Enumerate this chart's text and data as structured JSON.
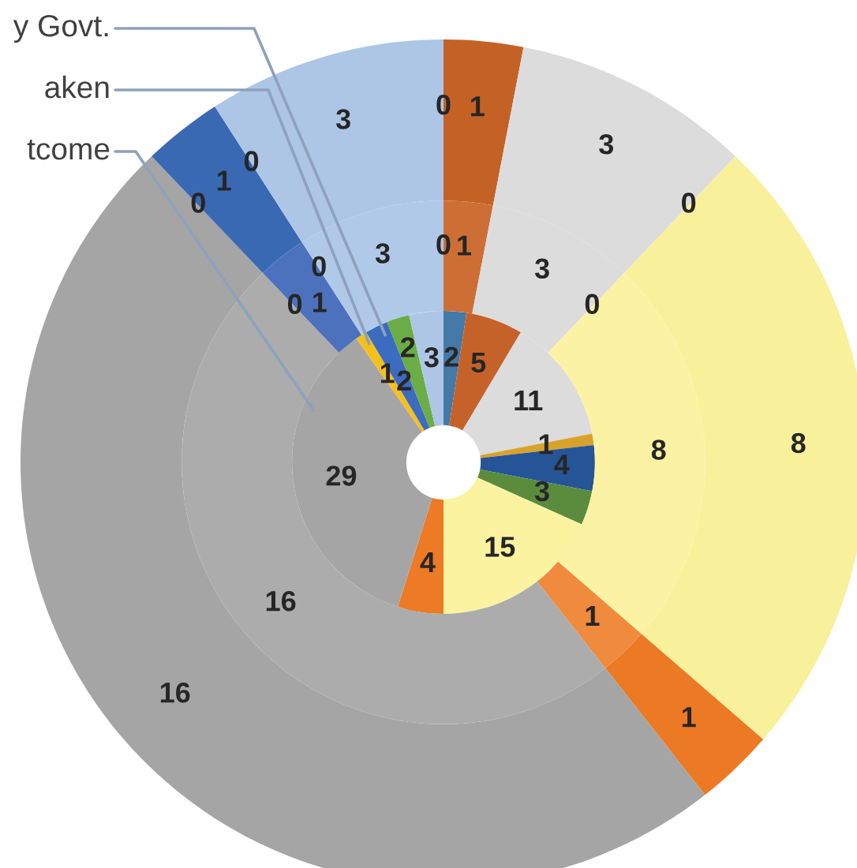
{
  "chart_data": {
    "type": "donut",
    "categories": [
      null,
      null,
      null,
      null,
      null,
      null,
      null,
      null,
      "tcome",
      "aken",
      "y Govt.",
      null,
      null
    ],
    "series": [
      {
        "values": [
          2,
          5,
          11,
          1,
          4,
          3,
          15,
          4,
          29,
          1,
          2,
          2,
          3
        ],
        "colors": [
          "#4479a8",
          "#c5622a",
          "#dcdcdc",
          "#d9a22a",
          "#255597",
          "#5b8c3e",
          "#fcf3a0",
          "#ed7a25",
          "#a5a5a5",
          "#f6c01c",
          "#3b6cc0",
          "#6bad47",
          "#adc6e6"
        ],
        "value_labels": [
          "2",
          "5",
          "11",
          "1",
          "4",
          "3",
          "15",
          "4",
          "29",
          "1",
          "2",
          "2",
          "3"
        ]
      },
      {
        "values": [
          0,
          1,
          3,
          0,
          0,
          0,
          8,
          1,
          16,
          0,
          1,
          0,
          3
        ],
        "colors": [
          "#4479a8",
          "#c46226",
          "#dcdcdc",
          "#d9a22a",
          "#255597",
          "#5b8c3e",
          "#f9f09c",
          "#ec7a24",
          "#a5a5a5",
          "#f6c01c",
          "#3a69b4",
          "#6bad47",
          "#adc6e6"
        ],
        "value_labels": [
          "0",
          "1",
          "3",
          "0",
          null,
          null,
          "8",
          "1",
          "16",
          "0",
          "1",
          "0",
          "3"
        ]
      },
      {
        "values": [
          0,
          1,
          3,
          0,
          0,
          0,
          8,
          1,
          16,
          0,
          1,
          0,
          3
        ],
        "colors": [
          "#4479a8",
          "#cd6f35",
          "#dcdcdc",
          "#d9a22a",
          "#255597",
          "#5b8c3e",
          "#fbf3a3",
          "#f08a3d",
          "#acacac",
          "#f6c01c",
          "#4c72be",
          "#6bad47",
          "#b0c9e8"
        ],
        "value_labels": [
          "0",
          "1",
          "3",
          "0",
          null,
          null,
          "8",
          "1",
          "16",
          "0",
          "1",
          "0",
          "3"
        ]
      }
    ]
  }
}
